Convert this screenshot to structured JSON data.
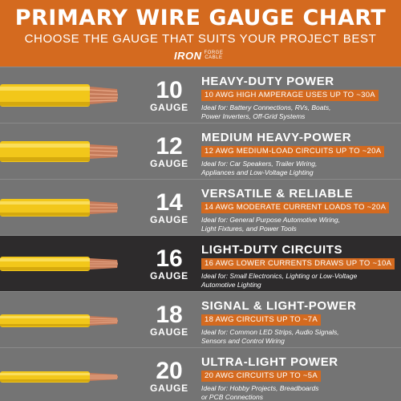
{
  "header": {
    "title": "PRIMARY WIRE GAUGE CHART",
    "subtitle": "CHOOSE THE GAUGE THAT SUITS YOUR PROJECT BEST",
    "logo": {
      "main": "IRON",
      "sub1": "FORGE",
      "sub2": "CABLE"
    }
  },
  "colors": {
    "accent": "#d46a1f",
    "row": "#747474",
    "row_dark": "#2d2b2c",
    "wire": "#f2c71a",
    "copper": "#c57b5a"
  },
  "rows": [
    {
      "number": "10",
      "gauge": "GAUGE",
      "heading": "HEAVY-DUTY POWER",
      "tag": "10 AWG HIGH AMPERAGE USES UP TO ~30A",
      "ideal1": "Ideal for: Battery Connections, RVs, Boats,",
      "ideal2": "Power Inverters, Off-Grid Systems"
    },
    {
      "number": "12",
      "gauge": "GAUGE",
      "heading": "MEDIUM HEAVY-POWER",
      "tag": "12 AWG MEDIUM-LOAD CIRCUITS UP TO ~20A",
      "ideal1": "Ideal for: Car Speakers, Trailer Wiring,",
      "ideal2": "Appliances and Low-Voltage Lighting"
    },
    {
      "number": "14",
      "gauge": "GAUGE",
      "heading": "VERSATILE & RELIABLE",
      "tag": "14 AWG MODERATE CURRENT LOADS TO ~20A",
      "ideal1": "Ideal for: General Purpose Automotive Wiring,",
      "ideal2": "Light Fixtures, and Power Tools"
    },
    {
      "number": "16",
      "gauge": "GAUGE",
      "heading": "LIGHT-DUTY CIRCUITS",
      "tag": "16 AWG LOWER CURRENTS DRAWS UP TO ~10A",
      "ideal1": "Ideal for: Small Electronics, Lighting or Low-Voltage",
      "ideal2": "Automotive Lighting"
    },
    {
      "number": "18",
      "gauge": "GAUGE",
      "heading": "SIGNAL & LIGHT-POWER",
      "tag": "18 AWG CIRCUITS UP TO ~7A",
      "ideal1": "Ideal for: Common LED Strips, Audio Signals,",
      "ideal2": "Sensors and Control Wiring"
    },
    {
      "number": "20",
      "gauge": "GAUGE",
      "heading": "ULTRA-LIGHT POWER",
      "tag": "20 AWG CIRCUITS UP TO ~5A",
      "ideal1": "Ideal for: Hobby Projects, Breadboards",
      "ideal2": "or PCB Connections"
    }
  ]
}
